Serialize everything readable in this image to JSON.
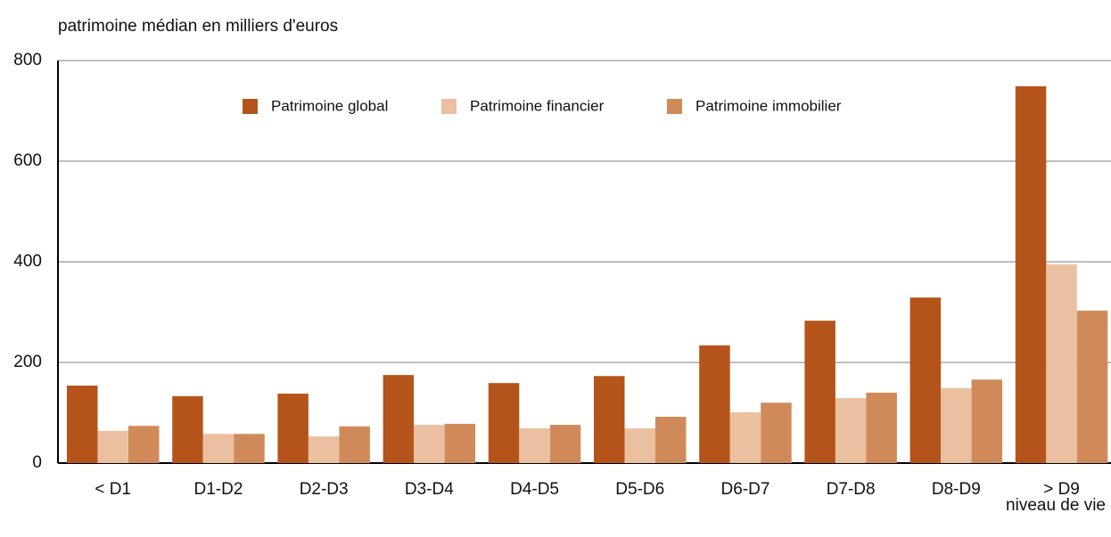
{
  "chart_data": {
    "type": "bar",
    "y_label": "patrimoine médian en milliers d'euros",
    "x_label": "niveau de vie",
    "categories": [
      "< D1",
      "D1-D2",
      "D2-D3",
      "D3-D4",
      "D4-D5",
      "D5-D6",
      "D6-D7",
      "D7-D8",
      "D8-D9",
      "> D9"
    ],
    "series": [
      {
        "name": "Patrimoine global",
        "color": "#b5541a",
        "values": [
          154,
          133,
          138,
          175,
          159,
          173,
          234,
          283,
          329,
          749
        ]
      },
      {
        "name": "Patrimoine financier",
        "color": "#ebc0a0",
        "values": [
          64,
          58,
          53,
          76,
          69,
          69,
          101,
          129,
          149,
          395
        ]
      },
      {
        "name": "Patrimoine immobilier",
        "color": "#d08a5a",
        "values": [
          74,
          58,
          73,
          78,
          76,
          92,
          120,
          140,
          166,
          303
        ]
      }
    ],
    "ylim": [
      0,
      800
    ],
    "yticks": [
      0,
      200,
      400,
      600,
      800
    ],
    "grid": true,
    "legend": "top"
  }
}
